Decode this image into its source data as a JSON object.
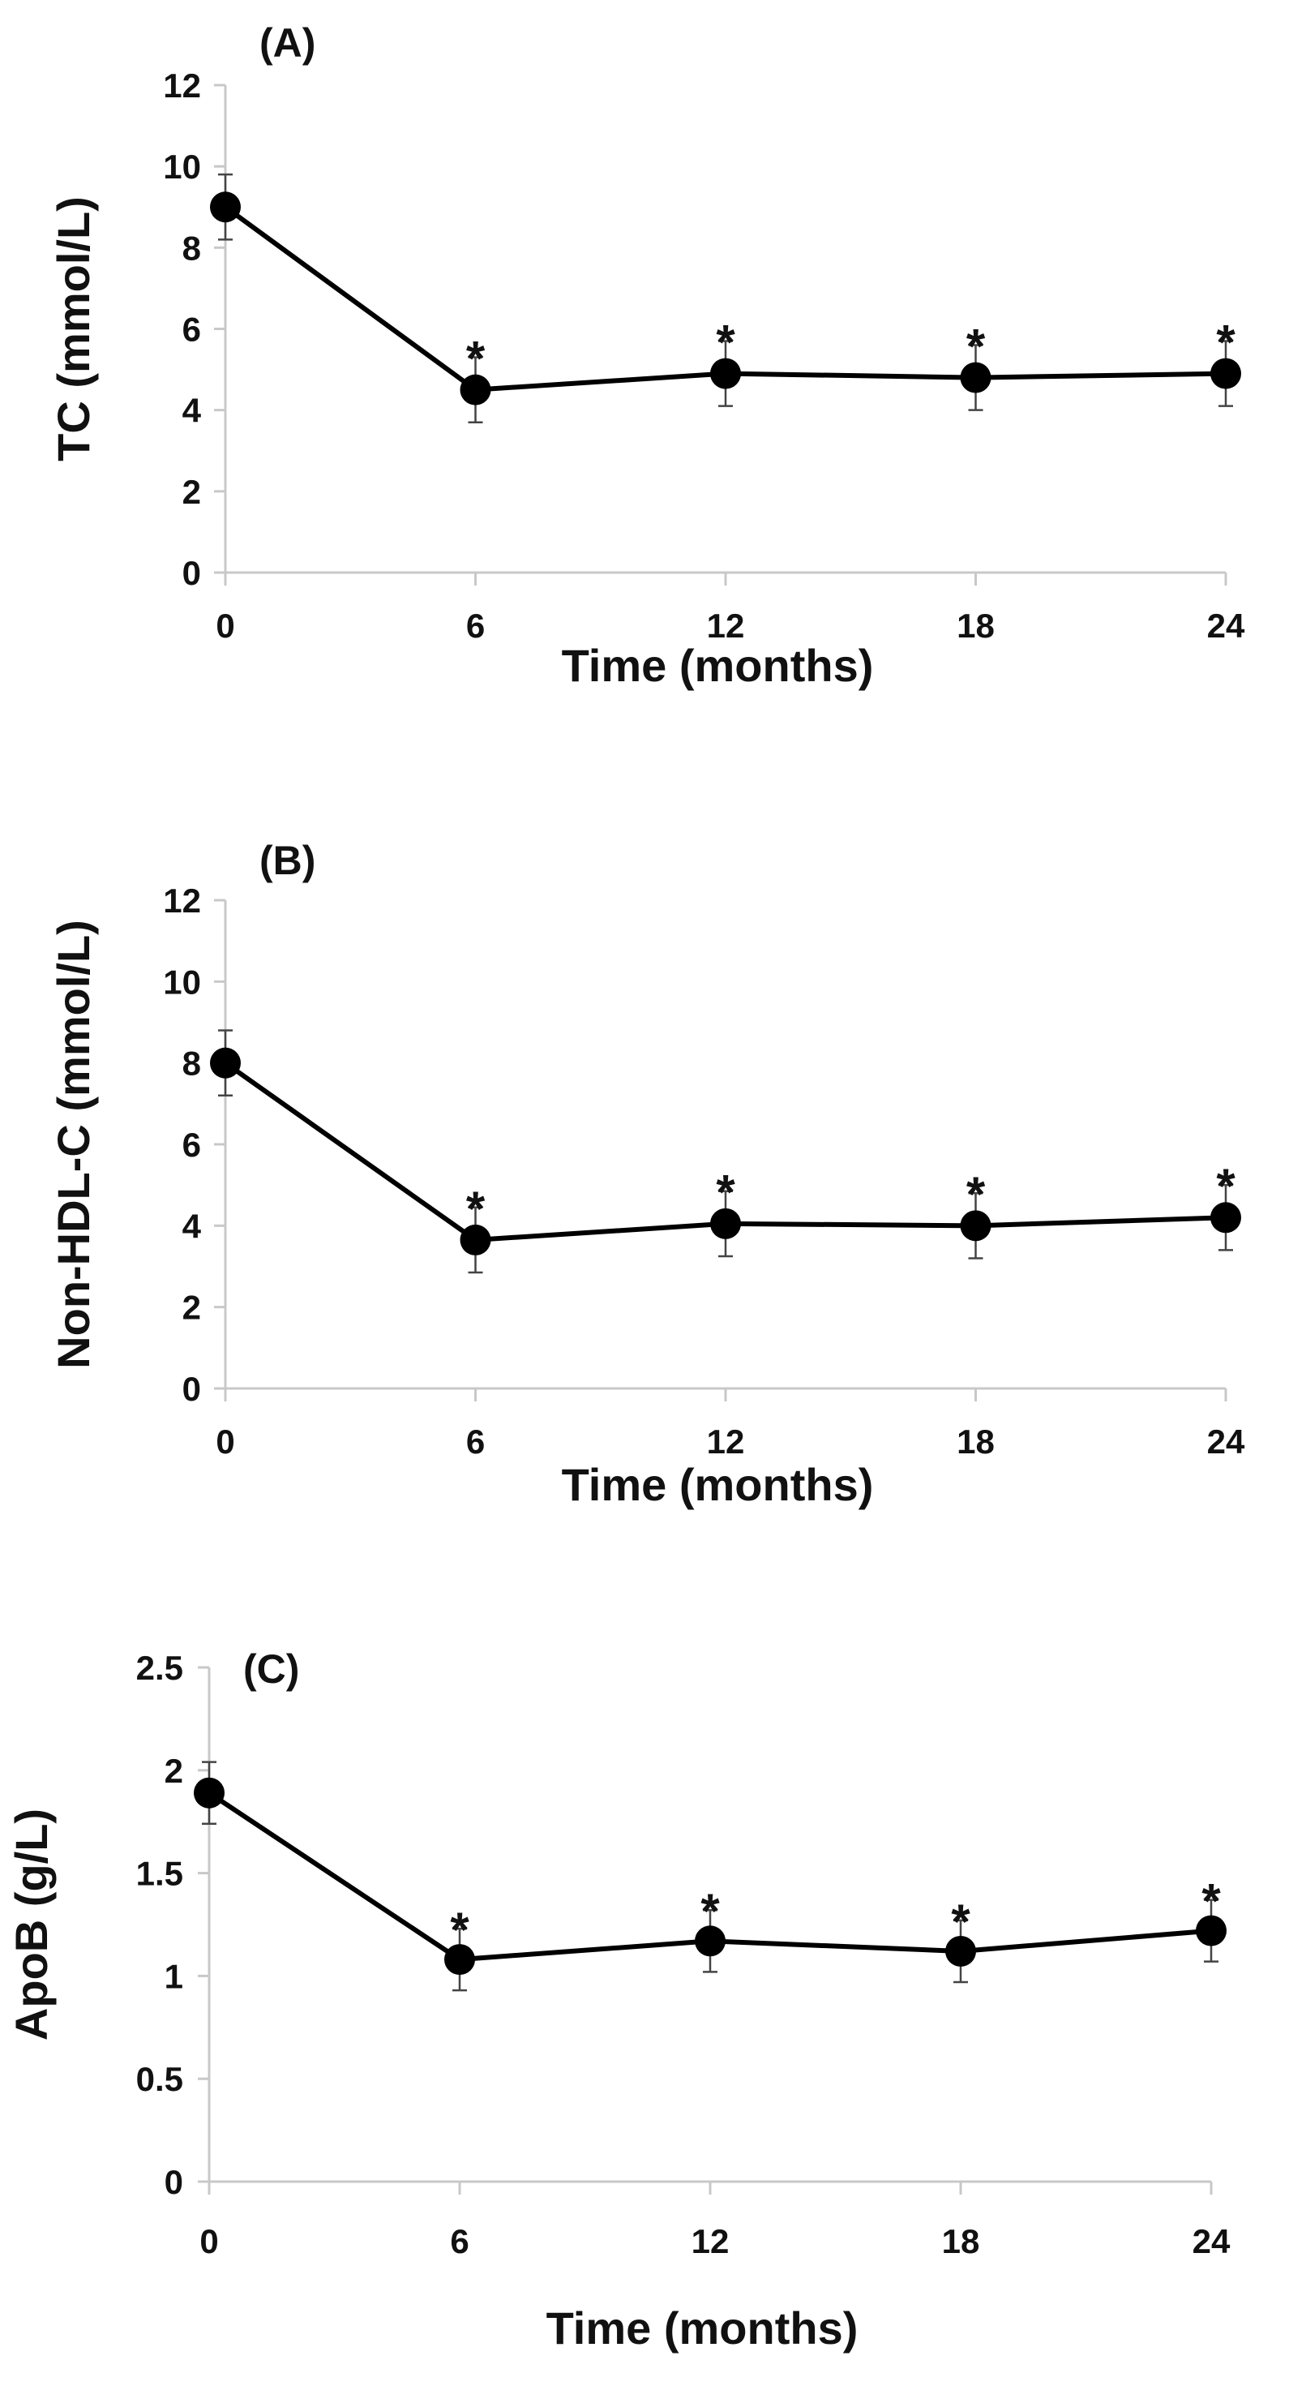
{
  "figure_title": "",
  "chart_data": [
    {
      "type": "line",
      "panel_label": "(A)",
      "title": "",
      "xlabel": "Time (months)",
      "ylabel": "TC (mmol/L)",
      "x": [
        0,
        6,
        12,
        18,
        24
      ],
      "x_tick_labels": [
        "0",
        "6",
        "12",
        "18",
        "24"
      ],
      "xlim": [
        0,
        24
      ],
      "ylim": [
        0,
        12
      ],
      "y_ticks": [
        0,
        2,
        4,
        6,
        8,
        10,
        12
      ],
      "y_tick_labels": [
        "0",
        "2",
        "4",
        "6",
        "8",
        "10",
        "12"
      ],
      "grid": false,
      "legend": null,
      "series": [
        {
          "name": "TC",
          "values": [
            9.0,
            4.5,
            4.9,
            4.8,
            4.9
          ],
          "error": [
            0.8,
            0.8,
            0.8,
            0.8,
            0.8
          ],
          "significance": [
            "",
            "*",
            "*",
            "*",
            "*"
          ]
        }
      ]
    },
    {
      "type": "line",
      "panel_label": "(B)",
      "title": "",
      "xlabel": "Time (months)",
      "ylabel": "Non-HDL-C (mmol/L)",
      "x": [
        0,
        6,
        12,
        18,
        24
      ],
      "x_tick_labels": [
        "0",
        "6",
        "12",
        "18",
        "24"
      ],
      "xlim": [
        0,
        24
      ],
      "ylim": [
        0,
        12
      ],
      "y_ticks": [
        0,
        2,
        4,
        6,
        8,
        10,
        12
      ],
      "y_tick_labels": [
        "0",
        "2",
        "4",
        "6",
        "8",
        "10",
        "12"
      ],
      "grid": false,
      "legend": null,
      "series": [
        {
          "name": "Non-HDL-C",
          "values": [
            8.0,
            3.65,
            4.05,
            4.0,
            4.2
          ],
          "error": [
            0.8,
            0.8,
            0.8,
            0.8,
            0.8
          ],
          "significance": [
            "",
            "*",
            "*",
            "*",
            "*"
          ]
        }
      ]
    },
    {
      "type": "line",
      "panel_label": "(C)",
      "title": "",
      "xlabel": "Time (months)",
      "ylabel": "ApoB (g/L)",
      "x": [
        0,
        6,
        12,
        18,
        24
      ],
      "x_tick_labels": [
        "0",
        "6",
        "12",
        "18",
        "24"
      ],
      "xlim": [
        0,
        24
      ],
      "ylim": [
        0,
        2.5
      ],
      "y_ticks": [
        0,
        0.5,
        1,
        1.5,
        2,
        2.5
      ],
      "y_tick_labels": [
        "0",
        "0.5",
        "1",
        "1.5",
        "2",
        "2.5"
      ],
      "grid": false,
      "legend": null,
      "series": [
        {
          "name": "ApoB",
          "values": [
            1.89,
            1.08,
            1.17,
            1.12,
            1.22
          ],
          "error": [
            0.15,
            0.15,
            0.15,
            0.15,
            0.15
          ],
          "significance": [
            "",
            "*",
            "*",
            "*",
            "*"
          ]
        }
      ]
    }
  ],
  "colors": {
    "axis": "#c8c8c8",
    "line": "#000000",
    "marker": "#000000",
    "text": "#111111",
    "errorbar": "#444444"
  }
}
